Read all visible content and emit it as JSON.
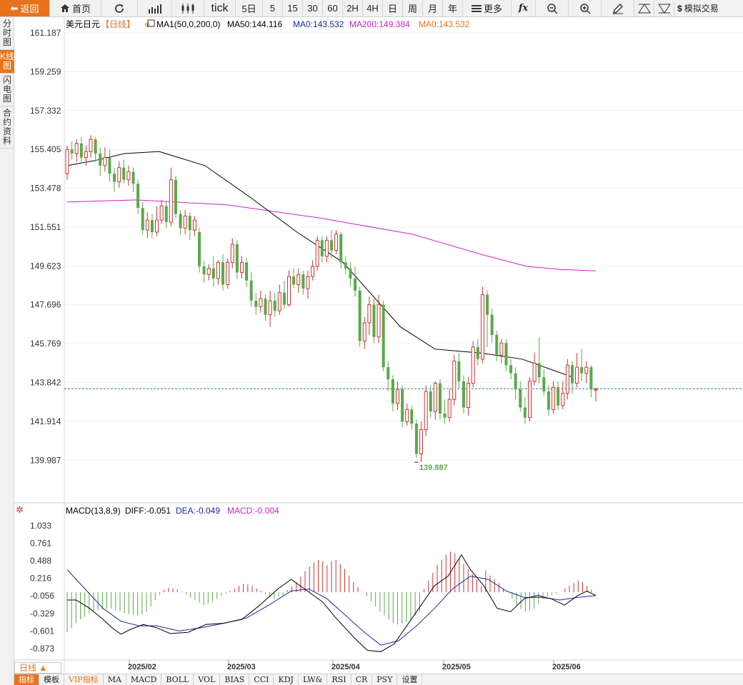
{
  "toolbar": {
    "back": "返回",
    "home": "首页",
    "tick": "tick",
    "periods": [
      "5日",
      "5",
      "15",
      "30",
      "60",
      "2H",
      "4H",
      "日",
      "周",
      "月",
      "年"
    ],
    "more": "更多",
    "simulate": "模拟交易"
  },
  "sidebar": [
    "分时图",
    "K线图",
    "闪电图",
    "合约资料"
  ],
  "legend": {
    "symbol": "美元日元",
    "period": "【日线】",
    "ma_name": "MA1(50,0,200,0)",
    "ma50": "MA50:144.116",
    "ma0": "MA0:143.532",
    "ma200": "MA200:149.384",
    "ma0b": "MA0:143.532"
  },
  "macd_legend": {
    "name": "MACD(13,8,9)",
    "diff": "DIFF:-0.051",
    "dea": "DEA:-0.049",
    "macd": "MACD:-0.004"
  },
  "period_select": "日线 ▲",
  "bottom_tabs": [
    "指标",
    "模板",
    "VIP指标",
    "MA",
    "MACD",
    "BOLL",
    "VOL",
    "BIAS",
    "CCI",
    "KDJ",
    "LW&",
    "RSI",
    "CR",
    "PSY",
    "设置"
  ],
  "colors": {
    "up": "#cc3333",
    "down": "#5aa84a",
    "ma50": "#000000",
    "ma200": "#cc22cc",
    "dea": "#1a2aa0",
    "accent": "#e8731c"
  },
  "chart_data": [
    {
      "type": "candlestick",
      "title": "美元日元 日线",
      "y_ticks": [
        "161.187",
        "159.259",
        "157.332",
        "155.405",
        "153.478",
        "151.551",
        "149.623",
        "147.696",
        "145.769",
        "143.842",
        "141.914",
        "139.987"
      ],
      "x_ticks": [
        "2025/02",
        "2025/03",
        "2025/04",
        "2025/05",
        "2025/06"
      ],
      "ylim": [
        139.5,
        161.187
      ],
      "last_price": 143.532,
      "low_label": "139.887",
      "candles": [
        [
          154.2,
          155.4,
          155.6,
          153.9
        ],
        [
          155.4,
          155.2,
          155.8,
          154.9
        ],
        [
          155.2,
          155.7,
          155.9,
          154.8
        ],
        [
          155.7,
          155.0,
          156.0,
          154.7
        ],
        [
          155.0,
          155.3,
          155.6,
          154.6
        ],
        [
          155.3,
          155.9,
          156.1,
          155.0
        ],
        [
          155.9,
          155.2,
          156.0,
          154.8
        ],
        [
          155.2,
          154.6,
          155.5,
          154.1
        ],
        [
          154.6,
          155.0,
          155.5,
          154.3
        ],
        [
          155.0,
          154.2,
          155.4,
          153.8
        ],
        [
          154.2,
          153.8,
          154.5,
          153.3
        ],
        [
          153.8,
          154.5,
          154.8,
          153.5
        ],
        [
          154.5,
          153.9,
          154.9,
          153.7
        ],
        [
          153.9,
          154.3,
          154.6,
          153.6
        ],
        [
          154.3,
          153.7,
          154.5,
          153.3
        ],
        [
          153.7,
          152.5,
          153.9,
          152.2
        ],
        [
          152.5,
          151.4,
          152.8,
          151.2
        ],
        [
          151.4,
          151.9,
          152.3,
          151.0
        ],
        [
          151.9,
          151.3,
          152.2,
          151.0
        ],
        [
          151.3,
          151.9,
          152.6,
          151.1
        ],
        [
          151.9,
          152.6,
          152.9,
          151.7
        ],
        [
          152.6,
          151.8,
          152.8,
          151.5
        ],
        [
          151.8,
          153.9,
          154.5,
          151.6
        ],
        [
          153.9,
          152.2,
          154.1,
          152.0
        ],
        [
          152.2,
          151.5,
          152.4,
          151.2
        ],
        [
          151.5,
          152.1,
          152.4,
          151.2
        ],
        [
          152.1,
          151.4,
          152.3,
          150.9
        ],
        [
          151.4,
          151.9,
          152.1,
          151.1
        ],
        [
          151.3,
          149.6,
          151.5,
          149.3
        ],
        [
          149.6,
          149.2,
          149.9,
          148.8
        ],
        [
          149.2,
          149.5,
          149.7,
          148.9
        ],
        [
          149.5,
          149.0,
          150.1,
          148.6
        ],
        [
          149.0,
          149.8,
          149.9,
          148.7
        ],
        [
          149.8,
          148.7,
          150.2,
          148.4
        ],
        [
          148.7,
          149.8,
          150.0,
          148.5
        ],
        [
          149.8,
          150.7,
          151.0,
          149.5
        ],
        [
          150.7,
          149.3,
          150.9,
          149.0
        ],
        [
          149.3,
          149.8,
          150.1,
          149.0
        ],
        [
          149.8,
          148.9,
          150.0,
          148.6
        ],
        [
          148.9,
          147.9,
          149.3,
          147.6
        ],
        [
          147.9,
          147.6,
          148.3,
          147.2
        ],
        [
          147.6,
          148.0,
          148.4,
          147.3
        ],
        [
          148.0,
          147.2,
          148.2,
          146.9
        ],
        [
          147.2,
          147.9,
          148.4,
          146.6
        ],
        [
          147.9,
          147.4,
          148.3,
          147.1
        ],
        [
          147.4,
          148.3,
          148.7,
          147.2
        ],
        [
          148.3,
          147.7,
          148.9,
          147.5
        ],
        [
          147.7,
          149.1,
          149.4,
          147.6
        ],
        [
          149.1,
          148.7,
          149.5,
          148.5
        ],
        [
          148.7,
          149.2,
          149.5,
          148.3
        ],
        [
          149.2,
          148.5,
          149.4,
          148.2
        ],
        [
          148.5,
          149.1,
          149.4,
          148.0
        ],
        [
          149.1,
          149.6,
          149.9,
          148.9
        ],
        [
          149.6,
          150.9,
          151.1,
          149.4
        ],
        [
          150.9,
          150.1,
          151.1,
          149.8
        ],
        [
          150.1,
          150.9,
          151.1,
          149.8
        ],
        [
          150.9,
          150.4,
          151.4,
          150.0
        ],
        [
          150.4,
          151.2,
          151.4,
          150.2
        ],
        [
          151.2,
          149.8,
          151.3,
          149.5
        ],
        [
          149.8,
          149.5,
          150.1,
          149.2
        ],
        [
          149.5,
          149.0,
          149.8,
          148.6
        ],
        [
          149.0,
          148.4,
          149.6,
          148.1
        ],
        [
          148.4,
          145.9,
          148.6,
          145.6
        ],
        [
          145.9,
          146.8,
          147.1,
          145.5
        ],
        [
          146.8,
          147.7,
          148.1,
          146.2
        ],
        [
          147.7,
          146.1,
          148.0,
          145.8
        ],
        [
          146.1,
          147.7,
          148.2,
          145.8
        ],
        [
          147.7,
          144.6,
          147.9,
          144.4
        ],
        [
          144.6,
          144.0,
          144.9,
          143.4
        ],
        [
          144.0,
          142.8,
          144.2,
          142.4
        ],
        [
          142.8,
          143.5,
          143.9,
          142.5
        ],
        [
          143.5,
          141.9,
          143.7,
          141.6
        ],
        [
          141.9,
          142.5,
          142.8,
          141.7
        ],
        [
          142.5,
          141.8,
          142.7,
          141.5
        ],
        [
          141.8,
          140.3,
          142.0,
          140.1
        ],
        [
          140.3,
          141.5,
          141.9,
          139.9
        ],
        [
          141.5,
          143.4,
          143.7,
          141.2
        ],
        [
          143.4,
          142.4,
          143.7,
          142.1
        ],
        [
          142.4,
          143.8,
          143.9,
          142.0
        ],
        [
          143.8,
          142.3,
          144.0,
          142.0
        ],
        [
          142.3,
          142.1,
          143.0,
          141.8
        ],
        [
          142.1,
          143.0,
          143.5,
          141.9
        ],
        [
          143.0,
          144.9,
          145.2,
          142.7
        ],
        [
          144.9,
          143.9,
          145.3,
          143.5
        ],
        [
          143.9,
          142.6,
          144.2,
          142.3
        ],
        [
          142.6,
          143.8,
          144.1,
          142.2
        ],
        [
          143.8,
          145.6,
          145.9,
          143.6
        ],
        [
          145.6,
          145.0,
          146.0,
          144.7
        ],
        [
          145.0,
          148.2,
          148.6,
          144.8
        ],
        [
          148.2,
          147.2,
          148.4,
          145.6
        ],
        [
          147.2,
          146.2,
          147.5,
          145.8
        ],
        [
          146.2,
          145.2,
          146.4,
          144.9
        ],
        [
          145.2,
          145.8,
          146.0,
          144.8
        ],
        [
          145.8,
          144.7,
          146.0,
          144.4
        ],
        [
          144.7,
          144.3,
          145.0,
          144.0
        ],
        [
          144.3,
          143.5,
          144.6,
          143.0
        ],
        [
          143.5,
          142.6,
          143.9,
          142.4
        ],
        [
          142.6,
          142.1,
          143.1,
          141.8
        ],
        [
          142.1,
          143.9,
          144.1,
          141.9
        ],
        [
          143.9,
          144.8,
          145.3,
          143.7
        ],
        [
          144.8,
          144.1,
          146.1,
          143.8
        ],
        [
          144.1,
          143.4,
          144.5,
          143.2
        ],
        [
          143.4,
          142.5,
          143.7,
          142.2
        ],
        [
          142.5,
          143.6,
          143.9,
          142.3
        ],
        [
          143.6,
          142.7,
          143.9,
          142.5
        ],
        [
          142.7,
          143.3,
          143.9,
          142.5
        ],
        [
          143.3,
          144.7,
          145.0,
          143.0
        ],
        [
          144.7,
          143.8,
          144.9,
          143.3
        ],
        [
          143.8,
          144.6,
          145.3,
          143.6
        ],
        [
          144.6,
          144.3,
          145.5,
          143.9
        ],
        [
          144.3,
          144.6,
          144.9,
          143.8
        ],
        [
          144.6,
          143.5,
          144.7,
          143.1
        ],
        [
          143.5,
          143.5,
          143.6,
          142.9
        ]
      ],
      "ma50": [
        [
          0,
          154.6
        ],
        [
          12,
          154.85
        ],
        [
          25,
          155.2
        ],
        [
          40,
          155.3
        ],
        [
          60,
          154.6
        ],
        [
          80,
          153.0
        ],
        [
          100,
          151.3
        ],
        [
          120,
          149.8
        ],
        [
          145,
          146.6
        ],
        [
          160,
          145.5
        ],
        [
          180,
          145.3
        ],
        [
          198,
          145.0
        ],
        [
          220,
          144.1
        ]
      ],
      "ma200": [
        [
          0,
          152.8
        ],
        [
          30,
          152.9
        ],
        [
          70,
          152.65
        ],
        [
          110,
          152.0
        ],
        [
          150,
          151.2
        ],
        [
          180,
          150.2
        ],
        [
          200,
          149.6
        ],
        [
          215,
          149.45
        ],
        [
          230,
          149.38
        ]
      ]
    },
    {
      "type": "macd",
      "y_ticks": [
        "1.033",
        "0.761",
        "0.488",
        "0.216",
        "-0.056",
        "-0.329",
        "-0.601",
        "-0.873"
      ],
      "ylim": [
        -1.05,
        1.12
      ],
      "histogram": [
        -0.62,
        -0.55,
        -0.48,
        -0.42,
        -0.38,
        -0.33,
        -0.3,
        -0.28,
        -0.27,
        -0.26,
        -0.25,
        -0.28,
        -0.3,
        -0.32,
        -0.34,
        -0.35,
        -0.36,
        -0.35,
        -0.3,
        -0.22,
        -0.12,
        -0.04,
        0.04,
        0.07,
        0.06,
        0.04,
        0.01,
        -0.03,
        -0.08,
        -0.12,
        -0.16,
        -0.2,
        -0.18,
        -0.14,
        -0.1,
        -0.06,
        -0.02,
        0.02,
        0.06,
        0.1,
        0.13,
        0.12,
        0.1,
        0.06,
        0.02,
        -0.03,
        -0.08,
        -0.1,
        -0.07,
        -0.04,
        0.03,
        0.09,
        0.16,
        0.24,
        0.33,
        0.4,
        0.46,
        0.5,
        0.48,
        0.42,
        0.48,
        0.5,
        0.44,
        0.36,
        0.26,
        0.16,
        0.08,
        0.01,
        -0.06,
        -0.14,
        -0.22,
        -0.3,
        -0.36,
        -0.42,
        -0.48,
        -0.5,
        -0.48,
        -0.46,
        -0.42,
        -0.36,
        -0.3,
        0.05,
        0.18,
        0.3,
        0.42,
        0.5,
        0.58,
        0.63,
        0.6,
        0.52,
        0.44,
        0.36,
        0.28,
        0.2,
        0.1,
        0.34,
        0.26,
        0.2,
        0.14,
        0.06,
        0.0,
        -0.1,
        -0.2,
        -0.26,
        -0.3,
        -0.28,
        -0.26,
        -0.18,
        -0.1,
        -0.06,
        -0.04,
        -0.02,
        0.0,
        0.06,
        0.1,
        0.14,
        0.18,
        0.16,
        0.1,
        0.04,
        -0.004
      ],
      "diff": [
        [
          0,
          -0.12
        ],
        [
          4,
          -0.12
        ],
        [
          10,
          -0.25
        ],
        [
          16,
          -0.42
        ],
        [
          20,
          -0.55
        ],
        [
          24,
          -0.65
        ],
        [
          28,
          -0.58
        ],
        [
          34,
          -0.5
        ],
        [
          40,
          -0.55
        ],
        [
          46,
          -0.64
        ],
        [
          54,
          -0.62
        ],
        [
          62,
          -0.5
        ],
        [
          70,
          -0.48
        ],
        [
          78,
          -0.42
        ],
        [
          86,
          -0.2
        ],
        [
          94,
          0.05
        ],
        [
          100,
          0.2
        ],
        [
          106,
          0.05
        ],
        [
          114,
          -0.15
        ],
        [
          120,
          -0.4
        ],
        [
          128,
          -0.7
        ],
        [
          134,
          -0.9
        ],
        [
          140,
          -0.92
        ],
        [
          146,
          -0.8
        ],
        [
          152,
          -0.5
        ],
        [
          158,
          -0.2
        ],
        [
          164,
          0.1
        ],
        [
          170,
          0.25
        ],
        [
          176,
          0.58
        ],
        [
          180,
          0.35
        ],
        [
          186,
          0.1
        ],
        [
          192,
          -0.25
        ],
        [
          198,
          -0.3
        ],
        [
          204,
          -0.1
        ],
        [
          210,
          -0.05
        ],
        [
          216,
          -0.1
        ],
        [
          222,
          -0.2
        ],
        [
          228,
          -0.05
        ],
        [
          232,
          0.02
        ],
        [
          236,
          -0.05
        ]
      ],
      "dea": [
        [
          0,
          0.35
        ],
        [
          8,
          0.05
        ],
        [
          16,
          -0.25
        ],
        [
          24,
          -0.45
        ],
        [
          32,
          -0.52
        ],
        [
          40,
          -0.52
        ],
        [
          50,
          -0.6
        ],
        [
          60,
          -0.55
        ],
        [
          70,
          -0.48
        ],
        [
          80,
          -0.4
        ],
        [
          90,
          -0.2
        ],
        [
          100,
          0.02
        ],
        [
          108,
          0.05
        ],
        [
          116,
          -0.1
        ],
        [
          124,
          -0.35
        ],
        [
          132,
          -0.6
        ],
        [
          140,
          -0.82
        ],
        [
          148,
          -0.75
        ],
        [
          156,
          -0.52
        ],
        [
          164,
          -0.25
        ],
        [
          172,
          0.05
        ],
        [
          180,
          0.25
        ],
        [
          188,
          0.2
        ],
        [
          196,
          0.02
        ],
        [
          204,
          -0.08
        ],
        [
          212,
          -0.08
        ],
        [
          220,
          -0.12
        ],
        [
          228,
          -0.08
        ],
        [
          236,
          -0.05
        ]
      ]
    }
  ]
}
